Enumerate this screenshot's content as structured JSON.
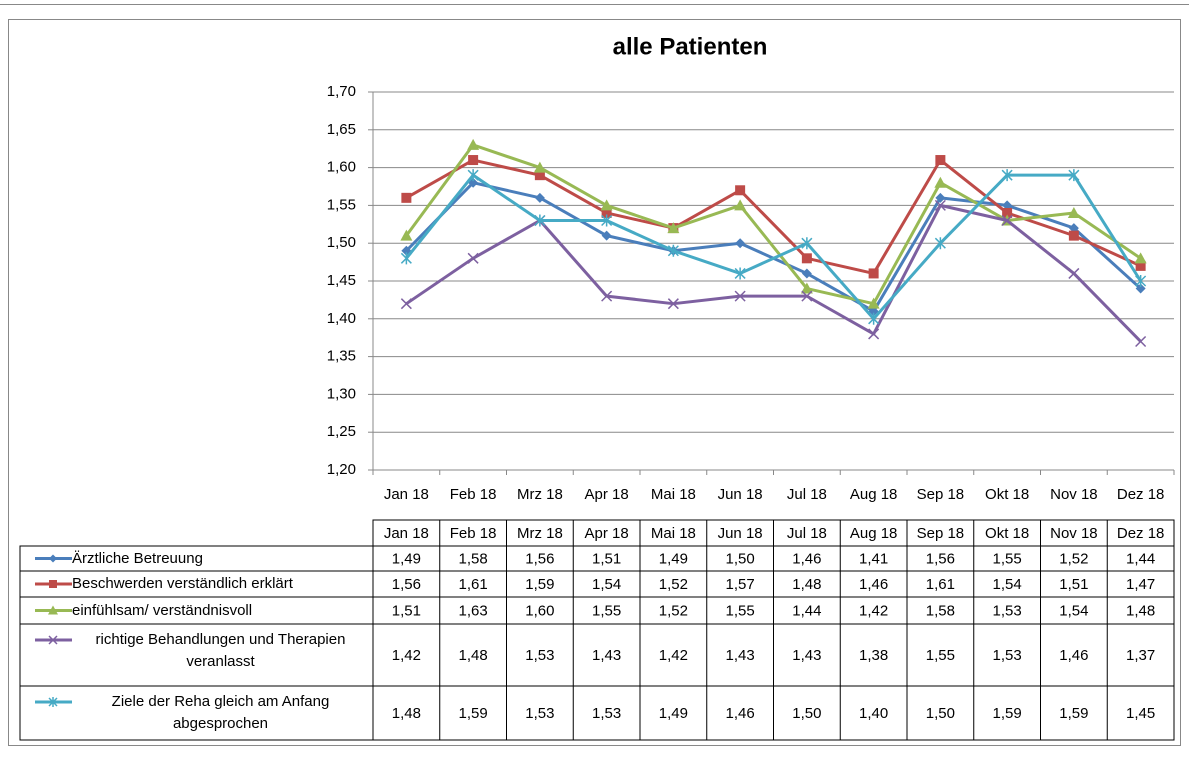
{
  "chart_data": {
    "type": "line",
    "title": "alle Patienten",
    "categories": [
      "Jan 18",
      "Feb 18",
      "Mrz 18",
      "Apr 18",
      "Mai 18",
      "Jun 18",
      "Jul 18",
      "Aug 18",
      "Sep 18",
      "Okt 18",
      "Nov 18",
      "Dez 18"
    ],
    "ylim": [
      1.2,
      1.7
    ],
    "yticks": [
      {
        "value": 1.2,
        "label": "1,20"
      },
      {
        "value": 1.25,
        "label": "1,25"
      },
      {
        "value": 1.3,
        "label": "1,30"
      },
      {
        "value": 1.35,
        "label": "1,35"
      },
      {
        "value": 1.4,
        "label": "1,40"
      },
      {
        "value": 1.45,
        "label": "1,45"
      },
      {
        "value": 1.5,
        "label": "1,50"
      },
      {
        "value": 1.55,
        "label": "1,55"
      },
      {
        "value": 1.6,
        "label": "1,60"
      },
      {
        "value": 1.65,
        "label": "1,65"
      },
      {
        "value": 1.7,
        "label": "1,70"
      }
    ],
    "grid": true,
    "series": [
      {
        "name": "Ärztliche Betreuung",
        "color": "#4a7ebb",
        "marker": "diamond",
        "values": [
          1.49,
          1.58,
          1.56,
          1.51,
          1.49,
          1.5,
          1.46,
          1.41,
          1.56,
          1.55,
          1.52,
          1.44
        ],
        "value_labels": [
          "1,49",
          "1,58",
          "1,56",
          "1,51",
          "1,49",
          "1,50",
          "1,46",
          "1,41",
          "1,56",
          "1,55",
          "1,52",
          "1,44"
        ]
      },
      {
        "name": "Beschwerden verständlich erklärt",
        "color": "#be4b48",
        "marker": "square",
        "values": [
          1.56,
          1.61,
          1.59,
          1.54,
          1.52,
          1.57,
          1.48,
          1.46,
          1.61,
          1.54,
          1.51,
          1.47
        ],
        "value_labels": [
          "1,56",
          "1,61",
          "1,59",
          "1,54",
          "1,52",
          "1,57",
          "1,48",
          "1,46",
          "1,61",
          "1,54",
          "1,51",
          "1,47"
        ]
      },
      {
        "name": "einfühlsam/ verständnisvoll",
        "color": "#98b954",
        "marker": "triangle",
        "values": [
          1.51,
          1.63,
          1.6,
          1.55,
          1.52,
          1.55,
          1.44,
          1.42,
          1.58,
          1.53,
          1.54,
          1.48
        ],
        "value_labels": [
          "1,51",
          "1,63",
          "1,60",
          "1,55",
          "1,52",
          "1,55",
          "1,44",
          "1,42",
          "1,58",
          "1,53",
          "1,54",
          "1,48"
        ]
      },
      {
        "name": "richtige Behandlungen und Therapien veranlasst",
        "color": "#7d60a0",
        "marker": "x",
        "values": [
          1.42,
          1.48,
          1.53,
          1.43,
          1.42,
          1.43,
          1.43,
          1.38,
          1.55,
          1.53,
          1.46,
          1.37
        ],
        "value_labels": [
          "1,42",
          "1,48",
          "1,53",
          "1,43",
          "1,42",
          "1,43",
          "1,43",
          "1,38",
          "1,55",
          "1,53",
          "1,46",
          "1,37"
        ]
      },
      {
        "name": "Ziele der Reha gleich am Anfang abgesprochen",
        "color": "#46aac5",
        "marker": "star",
        "values": [
          1.48,
          1.59,
          1.53,
          1.53,
          1.49,
          1.46,
          1.5,
          1.4,
          1.5,
          1.59,
          1.59,
          1.45
        ],
        "value_labels": [
          "1,48",
          "1,59",
          "1,53",
          "1,53",
          "1,49",
          "1,46",
          "1,50",
          "1,40",
          "1,50",
          "1,59",
          "1,59",
          "1,45"
        ]
      }
    ]
  }
}
